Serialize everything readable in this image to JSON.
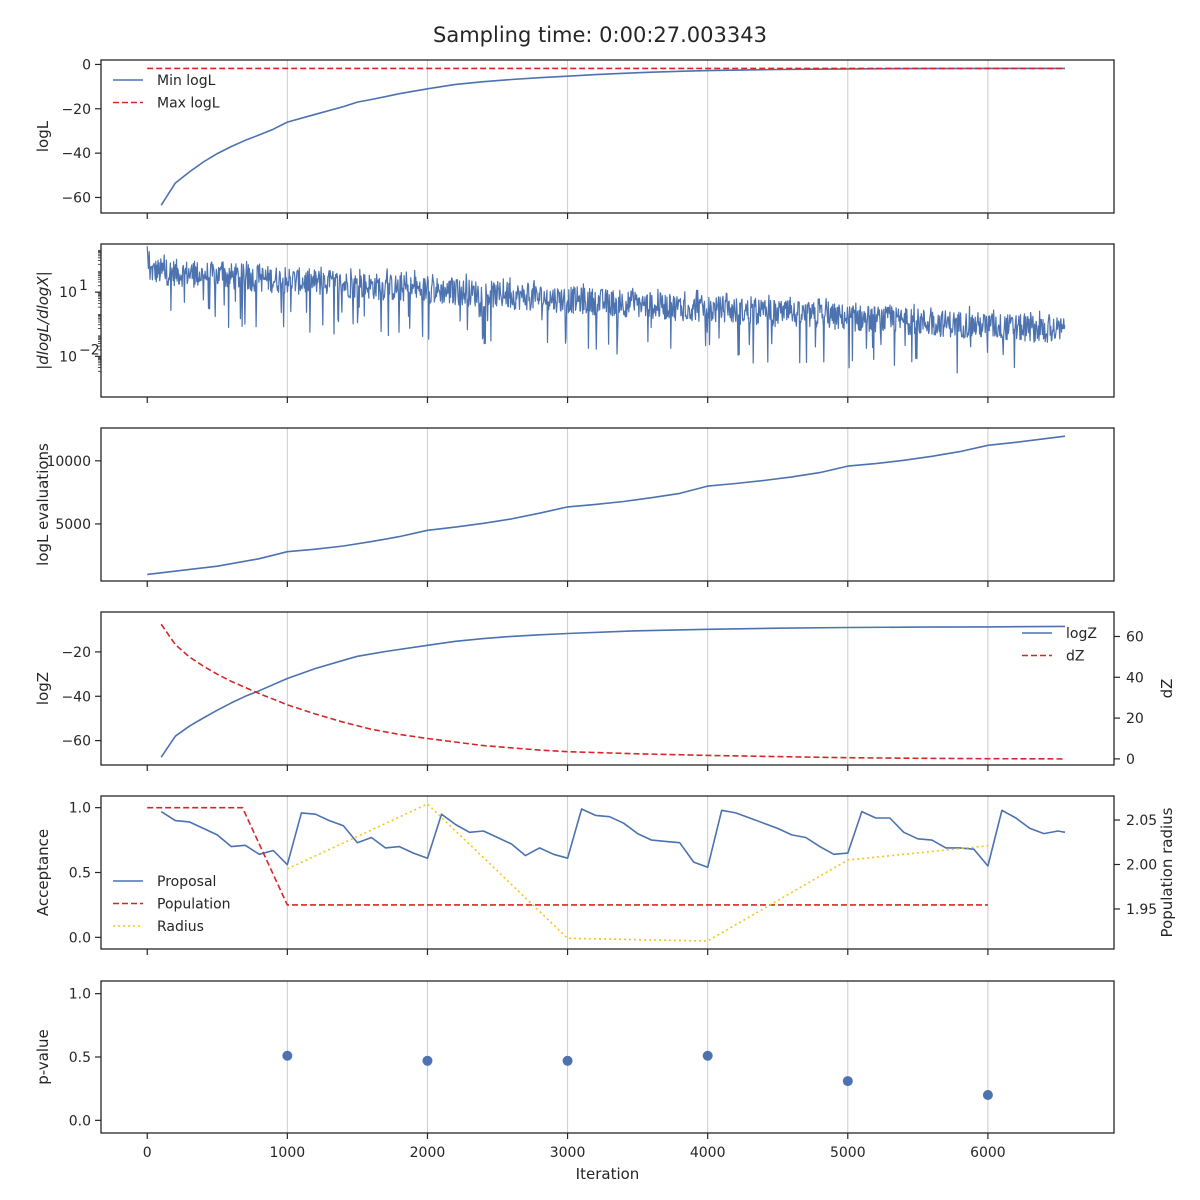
{
  "title": "Sampling time: 0:00:27.003343",
  "colors": {
    "blue": "#4c72b0",
    "red": "#d62728",
    "gold": "#f5c518",
    "grid": "#cccccc",
    "axis": "#262626"
  },
  "chart_data": [
    {
      "id": "logL",
      "type": "line",
      "ylabel": "logL",
      "ylim": [
        -67,
        2
      ],
      "yticks": [
        0,
        -20,
        -40,
        -60
      ],
      "ytick_labels": [
        "0",
        "−20",
        "−40",
        "−60"
      ],
      "legend": {
        "placement": "top-left",
        "entries": [
          "Min logL",
          "Max logL"
        ]
      },
      "series": [
        {
          "name": "Min logL",
          "color": "#4c72b0",
          "style": "solid",
          "x": [
            100,
            200,
            300,
            400,
            500,
            600,
            700,
            800,
            900,
            1000,
            1200,
            1400,
            1500,
            1600,
            1800,
            2000,
            2200,
            2400,
            2600,
            2800,
            3000,
            3200,
            3400,
            3600,
            3800,
            4000,
            4500,
            5000,
            5500,
            6000,
            6550
          ],
          "y": [
            -63.5,
            -53.5,
            -48.5,
            -44,
            -40.2,
            -37,
            -34.2,
            -31.8,
            -29.2,
            -26,
            -22.5,
            -19,
            -17,
            -15.8,
            -13.2,
            -11,
            -9,
            -7.8,
            -6.8,
            -6,
            -5.3,
            -4.6,
            -4,
            -3.5,
            -3.1,
            -2.8,
            -2.3,
            -2,
            -1.9,
            -1.8,
            -1.8
          ]
        },
        {
          "name": "Max logL",
          "color": "#d62728",
          "style": "dashed",
          "x": [
            0,
            6550
          ],
          "y": [
            -1.8,
            -1.8
          ]
        }
      ]
    },
    {
      "id": "dlogL",
      "type": "line",
      "ylabel": "|dlogL/dlogX|",
      "yscale": "log",
      "ylim_log10": [
        -3.9,
        3.25
      ],
      "yticks_log10": [
        1,
        -2
      ],
      "ytick_labels": [
        "10",
        "10"
      ],
      "ytick_exponents": [
        "1",
        "−2"
      ],
      "series": [
        {
          "name": "",
          "color": "#4c72b0",
          "style": "solid",
          "x_range": [
            0,
            6550
          ],
          "trend_log10": [
            [
              0,
              2.0
            ],
            [
              2000,
              1.1
            ],
            [
              4000,
              0.2
            ],
            [
              6550,
              -0.8
            ]
          ],
          "upper_spread_log10": 0.9,
          "lower_spread_log10": 2.0
        }
      ]
    },
    {
      "id": "evals",
      "type": "line",
      "ylabel": "logL evaluations",
      "ylim": [
        480,
        12600
      ],
      "yticks": [
        10000,
        5000
      ],
      "ytick_labels": [
        "10000",
        "5000"
      ],
      "series": [
        {
          "name": "",
          "color": "#4c72b0",
          "style": "solid",
          "x": [
            0,
            500,
            800,
            1000,
            1200,
            1400,
            1600,
            1800,
            2000,
            2200,
            2400,
            2600,
            2800,
            3000,
            3200,
            3400,
            3600,
            3800,
            4000,
            4200,
            4400,
            4600,
            4800,
            5000,
            5200,
            5400,
            5600,
            5800,
            6000,
            6200,
            6550
          ],
          "y": [
            1000,
            1650,
            2250,
            2800,
            3000,
            3250,
            3600,
            4000,
            4500,
            4750,
            5050,
            5400,
            5850,
            6350,
            6550,
            6780,
            7080,
            7420,
            8000,
            8200,
            8440,
            8730,
            9070,
            9580,
            9780,
            10040,
            10360,
            10730,
            11230,
            11470,
            11950
          ]
        }
      ]
    },
    {
      "id": "logZ",
      "type": "line",
      "ylabel": "logZ",
      "ylim": [
        -71,
        -2
      ],
      "yticks": [
        -20,
        -40,
        -60
      ],
      "ytick_labels": [
        "−20",
        "−40",
        "−60"
      ],
      "y2label": "dZ",
      "y2lim": [
        -3,
        72
      ],
      "y2ticks": [
        60,
        40,
        20,
        0
      ],
      "y2tick_labels": [
        "60",
        "40",
        "20",
        "0"
      ],
      "legend": {
        "placement": "top-right",
        "entries": [
          "logZ",
          "dZ"
        ]
      },
      "series": [
        {
          "name": "logZ",
          "axis": "left",
          "color": "#4c72b0",
          "style": "solid",
          "x": [
            100,
            200,
            300,
            400,
            500,
            600,
            700,
            800,
            1000,
            1200,
            1400,
            1500,
            1700,
            2000,
            2200,
            2400,
            2600,
            2800,
            3000,
            3500,
            4000,
            4500,
            5000,
            5500,
            6000,
            6550
          ],
          "y": [
            -67.5,
            -58,
            -53.5,
            -49.8,
            -46.3,
            -43,
            -40,
            -37.5,
            -32,
            -27.5,
            -23.8,
            -22,
            -19.8,
            -17,
            -15.2,
            -14,
            -13,
            -12.3,
            -11.7,
            -10.5,
            -9.8,
            -9.3,
            -9,
            -8.8,
            -8.7,
            -8.5
          ]
        },
        {
          "name": "dZ",
          "axis": "right",
          "color": "#d62728",
          "style": "dashed",
          "x": [
            100,
            200,
            300,
            400,
            500,
            600,
            800,
            1000,
            1200,
            1400,
            1600,
            1800,
            2000,
            2400,
            2800,
            3000,
            3500,
            4000,
            4500,
            5000,
            5500,
            6000,
            6550
          ],
          "y": [
            66,
            56,
            50,
            45.5,
            41.5,
            38,
            32,
            26.5,
            22,
            18,
            14.5,
            12,
            10,
            6.5,
            4.3,
            3.5,
            2.5,
            1.7,
            1.1,
            0.6,
            0.3,
            0.1,
            0
          ]
        }
      ]
    },
    {
      "id": "acceptance",
      "type": "line",
      "ylabel": "Acceptance",
      "ylim": [
        -0.09,
        1.09
      ],
      "yticks": [
        1.0,
        0.5,
        0.0
      ],
      "ytick_labels": [
        "1.0",
        "0.5",
        "0.0"
      ],
      "y2label": "Population radius",
      "y2lim": [
        1.905,
        2.077
      ],
      "y2ticks": [
        2.05,
        2.0,
        1.95
      ],
      "y2tick_labels": [
        "2.05",
        "2.00",
        "1.95"
      ],
      "legend": {
        "placement": "lower-left",
        "entries": [
          "Proposal",
          "Population",
          "Radius"
        ]
      },
      "series": [
        {
          "name": "Proposal",
          "axis": "left",
          "color": "#4c72b0",
          "style": "solid",
          "x": [
            100,
            200,
            300,
            400,
            500,
            600,
            700,
            800,
            900,
            1000,
            1100,
            1200,
            1300,
            1400,
            1500,
            1600,
            1700,
            1800,
            1900,
            2000,
            2100,
            2200,
            2300,
            2400,
            2500,
            2600,
            2700,
            2800,
            2900,
            3000,
            3100,
            3200,
            3300,
            3400,
            3500,
            3600,
            3700,
            3800,
            3900,
            4000,
            4100,
            4200,
            4300,
            4400,
            4500,
            4600,
            4700,
            4800,
            4900,
            5000,
            5100,
            5200,
            5300,
            5400,
            5500,
            5600,
            5700,
            5800,
            5900,
            6000,
            6100,
            6200,
            6300,
            6400,
            6500,
            6550
          ],
          "y": [
            0.97,
            0.9,
            0.89,
            0.84,
            0.79,
            0.7,
            0.71,
            0.64,
            0.67,
            0.56,
            0.96,
            0.95,
            0.9,
            0.86,
            0.73,
            0.77,
            0.69,
            0.7,
            0.65,
            0.61,
            0.95,
            0.87,
            0.81,
            0.82,
            0.77,
            0.72,
            0.63,
            0.69,
            0.64,
            0.61,
            0.99,
            0.94,
            0.93,
            0.88,
            0.8,
            0.75,
            0.74,
            0.73,
            0.58,
            0.54,
            0.98,
            0.96,
            0.92,
            0.88,
            0.84,
            0.79,
            0.77,
            0.7,
            0.64,
            0.65,
            0.97,
            0.92,
            0.92,
            0.81,
            0.76,
            0.75,
            0.69,
            0.69,
            0.68,
            0.55,
            0.98,
            0.92,
            0.84,
            0.8,
            0.82,
            0.81
          ]
        },
        {
          "name": "Population",
          "axis": "left",
          "color": "#d62728",
          "style": "dashed",
          "x": [
            0,
            680,
            1000,
            6000
          ],
          "y": [
            1.0,
            1.0,
            0.25,
            0.25
          ]
        },
        {
          "name": "Radius",
          "axis": "right",
          "color": "#f5c518",
          "style": "dotted",
          "x": [
            1000,
            2000,
            3000,
            4000,
            5000,
            6000
          ],
          "y": [
            1.995,
            2.068,
            1.917,
            1.914,
            2.005,
            2.021
          ]
        }
      ]
    },
    {
      "id": "pvalue",
      "type": "scatter",
      "ylabel": "p-value",
      "ylim": [
        -0.1,
        1.1
      ],
      "yticks": [
        1.0,
        0.5,
        0.0
      ],
      "ytick_labels": [
        "1.0",
        "0.5",
        "0.0"
      ],
      "xlabel": "Iteration",
      "xtick_labels": [
        "0",
        "1000",
        "2000",
        "3000",
        "4000",
        "5000",
        "6000"
      ],
      "series": [
        {
          "name": "",
          "color": "#4c72b0",
          "x": [
            1000,
            2000,
            3000,
            4000,
            5000,
            6000
          ],
          "y": [
            0.51,
            0.47,
            0.47,
            0.51,
            0.31,
            0.2
          ]
        }
      ]
    }
  ],
  "x_common": {
    "xlim": [
      -330,
      6900
    ],
    "xticks": [
      0,
      1000,
      2000,
      3000,
      4000,
      5000,
      6000
    ]
  }
}
